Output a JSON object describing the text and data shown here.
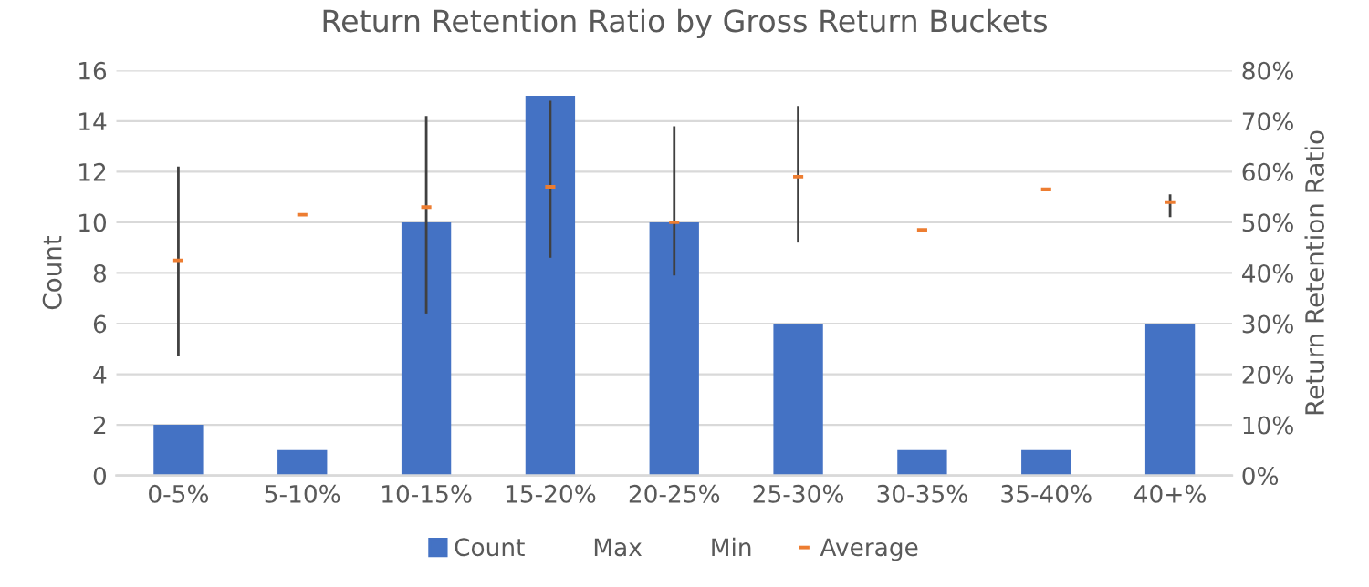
{
  "chart_data": {
    "type": "bar",
    "title": "Return Retention Ratio by Gross Return Buckets",
    "ylabel": "Count",
    "y2label": "Return Retention Ratio",
    "categories": [
      "0-5%",
      "5-10%",
      "10-15%",
      "15-20%",
      "20-25%",
      "25-30%",
      "30-35%",
      "35-40%",
      "40+%"
    ],
    "series": [
      {
        "name": "Count",
        "color": "#4472c4",
        "values": [
          2,
          1,
          10,
          15,
          10,
          6,
          1,
          1,
          6
        ]
      },
      {
        "name": "Average",
        "type": "scatter",
        "axis": "y2",
        "marker": "square",
        "color": "#ed7d31",
        "values": [
          42.5,
          51.5,
          53,
          57,
          50,
          59,
          48.5,
          56.5,
          54
        ],
        "errors": [
          [
            23.5,
            61
          ],
          null,
          [
            32,
            71
          ],
          [
            43,
            74
          ],
          [
            39.5,
            69
          ],
          [
            46,
            73
          ],
          null,
          null,
          [
            51,
            55.5
          ]
        ]
      }
    ],
    "annotations": [
      "Max",
      "Min"
    ],
    "ylim": [
      0,
      16
    ],
    "yticks": [
      0,
      2,
      4,
      6,
      8,
      10,
      12,
      14,
      16
    ],
    "y2lim": [
      0,
      80
    ],
    "y2ticks": [
      {
        "value": 0,
        "label": "0%"
      },
      {
        "value": 10,
        "label": "10%"
      },
      {
        "value": 20,
        "label": "20%"
      },
      {
        "value": 30,
        "label": "30%"
      },
      {
        "value": 40,
        "label": "40%"
      },
      {
        "value": 50,
        "label": "50%"
      },
      {
        "value": 60,
        "label": "60%"
      },
      {
        "value": 70,
        "label": "70%"
      },
      {
        "value": 80,
        "label": "80%"
      }
    ],
    "grid": "y",
    "legend": "bottom"
  }
}
